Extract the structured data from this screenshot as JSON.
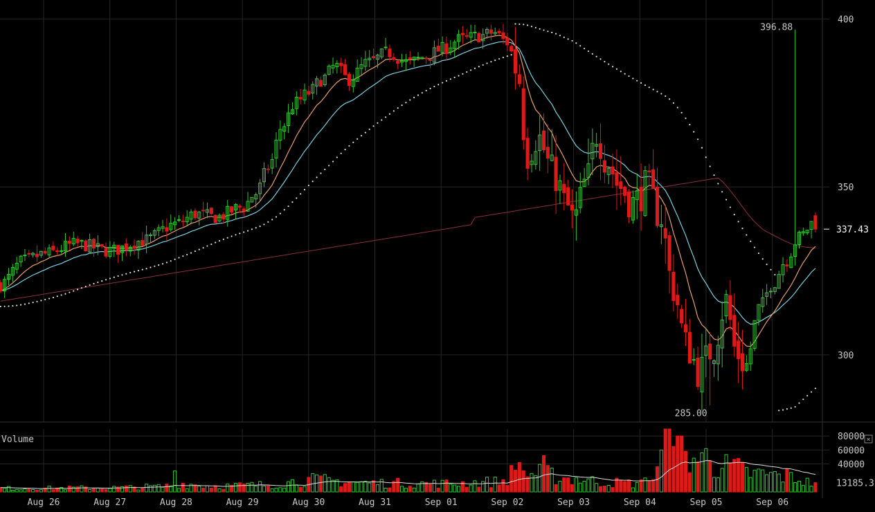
{
  "chart_data": {
    "type": "candlestick",
    "price_axis": {
      "ticks": [
        "400",
        "350",
        "300"
      ],
      "tick_values": [
        400,
        350,
        300
      ],
      "range": [
        280,
        404
      ]
    },
    "last_price": {
      "label": "337.43",
      "value": 337.43
    },
    "high_annotation": {
      "label": "396.88",
      "value": 396.88,
      "time": 11.35
    },
    "low_annotation": {
      "label": "285.00",
      "value": 285.0,
      "time": 10.08
    },
    "x_axis": {
      "labels": [
        "Aug 26",
        "Aug 27",
        "Aug 28",
        "Aug 29",
        "Aug 30",
        "Aug 31",
        "Sep 01",
        "Sep 02",
        "Sep 03",
        "Sep 04",
        "Sep 05",
        "Sep 06"
      ],
      "positions_days": [
        0,
        1,
        2,
        3,
        4,
        5,
        6,
        7,
        8,
        9,
        10,
        11
      ]
    },
    "price_keyframes": [
      [
        -0.65,
        321
      ],
      [
        -0.3,
        328
      ],
      [
        0,
        330
      ],
      [
        0.5,
        333
      ],
      [
        1,
        331
      ],
      [
        1.5,
        334
      ],
      [
        2,
        339
      ],
      [
        2.3,
        342
      ],
      [
        2.6,
        341
      ],
      [
        3,
        344
      ],
      [
        3.2,
        348
      ],
      [
        3.4,
        356
      ],
      [
        3.6,
        368
      ],
      [
        3.8,
        375
      ],
      [
        4.0,
        378
      ],
      [
        4.2,
        382
      ],
      [
        4.4,
        386
      ],
      [
        4.6,
        382
      ],
      [
        4.9,
        387
      ],
      [
        5.2,
        390
      ],
      [
        5.5,
        387
      ],
      [
        5.8,
        389
      ],
      [
        6.0,
        391
      ],
      [
        6.3,
        394
      ],
      [
        6.6,
        395
      ],
      [
        6.8,
        396
      ],
      [
        7.0,
        393
      ],
      [
        7.15,
        385
      ],
      [
        7.3,
        360
      ],
      [
        7.45,
        365
      ],
      [
        7.7,
        354
      ],
      [
        7.9,
        344
      ],
      [
        8.0,
        340
      ],
      [
        8.2,
        352
      ],
      [
        8.35,
        366
      ],
      [
        8.5,
        358
      ],
      [
        8.7,
        350
      ],
      [
        8.9,
        345
      ],
      [
        9.1,
        350
      ],
      [
        9.3,
        342
      ],
      [
        9.5,
        320
      ],
      [
        9.7,
        303
      ],
      [
        9.9,
        295
      ],
      [
        10.1,
        302
      ],
      [
        10.3,
        316
      ],
      [
        10.45,
        301
      ],
      [
        10.6,
        297
      ],
      [
        10.8,
        314
      ],
      [
        11.0,
        321
      ],
      [
        11.2,
        328
      ],
      [
        11.4,
        335
      ],
      [
        11.65,
        340
      ]
    ],
    "volume_axis": {
      "ticks": [
        "80000",
        "60000",
        "40000"
      ],
      "tick_values": [
        80000,
        60000,
        40000
      ],
      "range": [
        0,
        90000
      ],
      "last_value_label": "13185.3",
      "last_value": 13185.3
    },
    "volume_keyframes": [
      [
        -0.65,
        6000
      ],
      [
        1,
        7000
      ],
      [
        1.8,
        9000
      ],
      [
        2.0,
        14000
      ],
      [
        2.6,
        10000
      ],
      [
        3.4,
        12000
      ],
      [
        4.0,
        20000
      ],
      [
        5.0,
        15000
      ],
      [
        6.0,
        14000
      ],
      [
        6.9,
        17000
      ],
      [
        7.1,
        32000
      ],
      [
        7.5,
        30000
      ],
      [
        8.0,
        22000
      ],
      [
        8.5,
        16000
      ],
      [
        9.0,
        14000
      ],
      [
        9.4,
        35000
      ],
      [
        9.7,
        60000
      ],
      [
        10.0,
        50000
      ],
      [
        10.4,
        40000
      ],
      [
        10.7,
        30000
      ],
      [
        11.2,
        27000
      ],
      [
        11.65,
        14000
      ]
    ],
    "volume_spikes": [
      [
        1.98,
        30000
      ],
      [
        7.18,
        42000
      ],
      [
        7.55,
        52000
      ],
      [
        9.1,
        20000
      ],
      [
        9.25,
        36000
      ],
      [
        9.35,
        60000
      ],
      [
        9.42,
        90000
      ],
      [
        9.52,
        65000
      ],
      [
        9.6,
        80000
      ],
      [
        10.0,
        62000
      ],
      [
        10.08,
        45000
      ]
    ],
    "indicators": [
      {
        "kind": "ema",
        "period": 10,
        "color": "#e8a070"
      },
      {
        "kind": "ema",
        "period": 21,
        "color": "#7ed0e0"
      },
      {
        "kind": "sma",
        "period": 180,
        "color": "#8a3040"
      },
      {
        "kind": "psar-like",
        "color": "#dddddd"
      }
    ],
    "volume_panel_title": "Volume",
    "colors": {
      "background": "#000000",
      "grid": "#262626",
      "up": "#2ec82e",
      "down": "#dd1a1a",
      "text": "#c8c8c8",
      "volume_ma": "#dddddd"
    },
    "grid": true
  },
  "ui": {
    "volume_close_glyph": "×"
  }
}
